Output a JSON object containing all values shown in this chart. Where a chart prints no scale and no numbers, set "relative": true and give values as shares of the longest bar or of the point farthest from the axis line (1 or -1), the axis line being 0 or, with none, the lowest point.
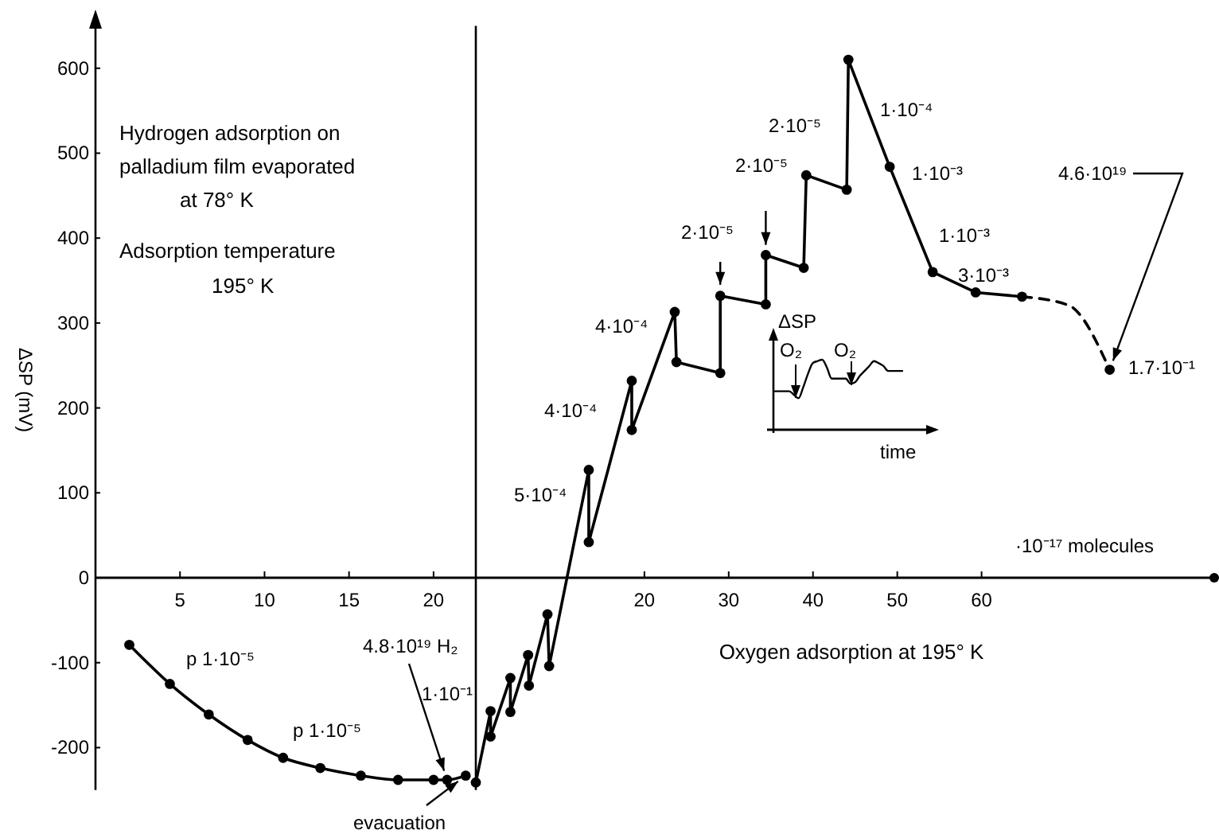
{
  "chart_data": [
    {
      "type": "line",
      "title": "Hydrogen adsorption on\npalladium film evaporated\nat 78° K",
      "subtitle": "Adsorption temperature\n195° K",
      "ylabel": "ΔSP (mV)",
      "xlim": [
        0,
        22.5
      ],
      "xticks": [
        5,
        10,
        15,
        20
      ],
      "ylim": [
        -250,
        650
      ],
      "yticks": [
        -200,
        -100,
        0,
        100,
        200,
        300,
        400,
        500,
        600
      ],
      "marker": "circle",
      "series": [
        {
          "color": "#000000",
          "x": [
            2.0,
            4.4,
            6.7,
            9.0,
            11.1,
            13.3,
            15.7,
            17.9,
            20.0,
            20.8,
            21.9
          ],
          "values": [
            -79,
            -125,
            -161,
            -191,
            -212,
            -224,
            -233,
            -238,
            -238,
            -238,
            -233
          ]
        }
      ],
      "annotations": [
        "p 1·10⁻⁵",
        "p 1·10⁻⁵",
        {
          "text": "4.8·10¹⁹ H₂",
          "x": 20.8,
          "y": -238
        },
        "1·10⁻¹",
        {
          "text": "evacuation",
          "x": 21.9,
          "y": -233
        }
      ]
    },
    {
      "type": "line",
      "xlabel": "Oxygen adsorption at 195° K",
      "xlim": [
        0,
        87.6
      ],
      "xticks": [
        20,
        30,
        40,
        50,
        60
      ],
      "ylim": [
        -250,
        650
      ],
      "tick_labels": "x",
      "series": [
        {
          "color": "#000000",
          "marker": "circle",
          "x": [
            0,
            1.75,
            1.75,
            4.1,
            4.1,
            6.2,
            6.3,
            8.5,
            8.7,
            13.4,
            13.4,
            18.5,
            18.5,
            23.6,
            23.8,
            29.0,
            29.0,
            34.4,
            34.4,
            38.9,
            39.2,
            44.0,
            44.2,
            49.1,
            54.2,
            59.3,
            64.8
          ],
          "values": [
            -241,
            -157,
            -187,
            -118,
            -158,
            -91,
            -127,
            -43,
            -104,
            127,
            42,
            232,
            174,
            313,
            254,
            241,
            332,
            322,
            380,
            365,
            474,
            457,
            610,
            484,
            360,
            336,
            331
          ]
        },
        {
          "color": "#000000",
          "marker": "none",
          "line_style": "dashed",
          "x": [
            64.8,
            70.3,
            75.2
          ],
          "values": [
            331,
            321,
            245
          ]
        },
        {
          "type": "scatter",
          "color": "#000000",
          "marker": "circle",
          "x": [
            75.2
          ],
          "values": [
            245
          ]
        }
      ],
      "annotations": [
        "5·10⁻⁴",
        "4·10⁻⁴",
        "4·10⁻⁴",
        "2·10⁻⁵",
        "2·10⁻⁵",
        "2·10⁻⁵",
        "1·10⁻⁴",
        "1·10⁻³",
        "1·10⁻³",
        "3·10⁻³",
        {
          "text": "4.6·10¹⁹",
          "x": 75.2,
          "y": 245
        },
        "1.7·10⁻¹",
        "·10⁻¹⁷ molecules"
      ]
    },
    {
      "type": "line",
      "relative": true,
      "ylabel": "ΔSP",
      "xlabel": "time",
      "categories": [
        null,
        null,
        null,
        null,
        null,
        null,
        null,
        null,
        null,
        null,
        null,
        null,
        null,
        null,
        null,
        null,
        null,
        null,
        null,
        null,
        null,
        null,
        null,
        null,
        null,
        null,
        null,
        null
      ],
      "series": [
        {
          "color": "#000000",
          "values": [
            0.55,
            0.55,
            0.55,
            0.55,
            0.5,
            0.45,
            0.61,
            0.8,
            0.95,
            0.98,
            1,
            0.89,
            0.73,
            0.73,
            0.73,
            0.73,
            0.66,
            0.68,
            0.77,
            0.84,
            0.91,
            0.98,
            0.95,
            0.91,
            0.84,
            0.84,
            0.84,
            0.84
          ]
        }
      ],
      "annotations": [
        "O₂",
        "O₂"
      ]
    }
  ]
}
